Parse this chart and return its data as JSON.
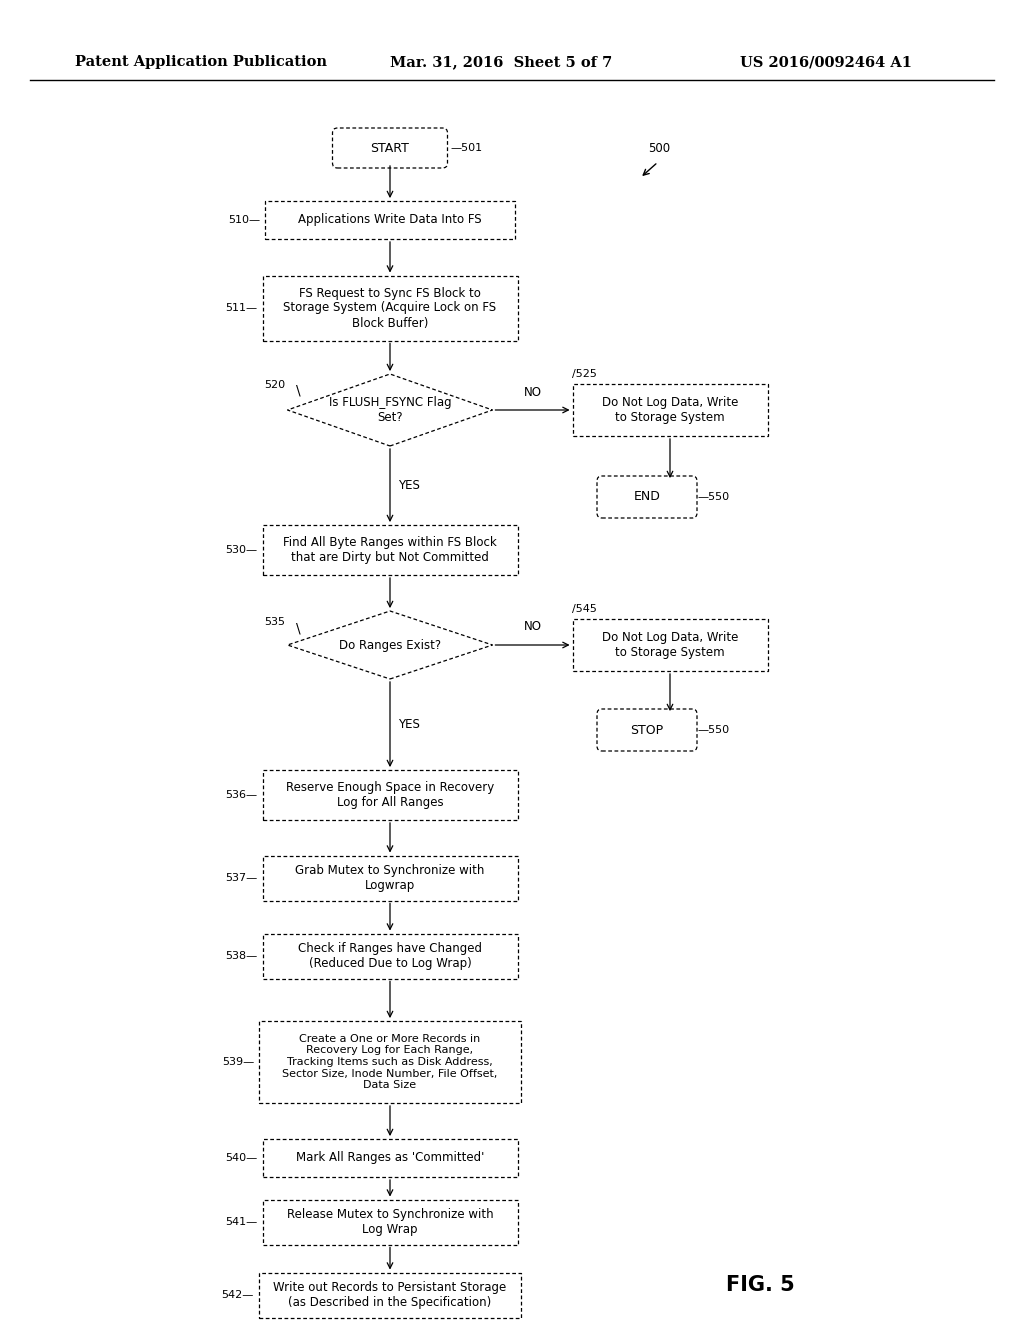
{
  "page_header_left": "Patent Application Publication",
  "page_header_mid": "Mar. 31, 2016  Sheet 5 of 7",
  "page_header_right": "US 2016/0092464 A1",
  "fig_label": "FIG. 5",
  "bg_color": "#ffffff"
}
